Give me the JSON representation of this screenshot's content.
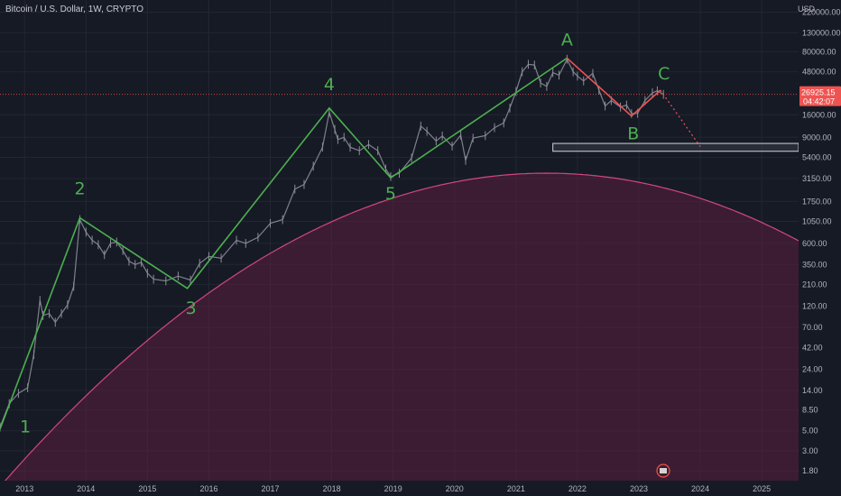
{
  "header": {
    "title": "Bitcoin / U.S. Dollar, 1W, CRYPTO",
    "currency": "USD"
  },
  "price_badge": {
    "price": "26925.15",
    "countdown": "04:42:07"
  },
  "colors": {
    "background": "#161a25",
    "candles": "#8a8d97",
    "impulse_lines": "#4caf50",
    "correction_line": "#ef5350",
    "curve_fill": "#6b1f45",
    "curve_stroke": "#d2477f",
    "price_line": "#ef5350",
    "badge": "#ef5350"
  },
  "chart_data": {
    "type": "line",
    "title": "Bitcoin / U.S. Dollar, 1W, CRYPTO",
    "ylabel": "USD",
    "y_scale": "log",
    "ylim": [
      1.4,
      300000
    ],
    "xlim": [
      2012.6,
      2025.6
    ],
    "x_ticks": [
      "2013",
      "2014",
      "2015",
      "2016",
      "2017",
      "2018",
      "2019",
      "2020",
      "2021",
      "2022",
      "2023",
      "2024",
      "2025"
    ],
    "y_ticks": [
      "220000.00",
      "130000.00",
      "80000.00",
      "48000.00",
      "26925.15",
      "16000.00",
      "9000.00",
      "5400.00",
      "3150.00",
      "1750.00",
      "1050.00",
      "600.00",
      "350.00",
      "210.00",
      "120.00",
      "70.00",
      "42.00",
      "24.00",
      "14.00",
      "8.50",
      "5.00",
      "3.00",
      "1.80"
    ],
    "series": [
      {
        "values": [
          [
            2012.6,
            5.5
          ],
          [
            2012.75,
            10
          ],
          [
            2012.9,
            13
          ],
          [
            2013.05,
            15
          ],
          [
            2013.15,
            35
          ],
          [
            2013.25,
            140
          ],
          [
            2013.3,
            95
          ],
          [
            2013.4,
            100
          ],
          [
            2013.5,
            80
          ],
          [
            2013.6,
            100
          ],
          [
            2013.7,
            125
          ],
          [
            2013.8,
            200
          ],
          [
            2013.9,
            1100
          ],
          [
            2014.0,
            800
          ],
          [
            2014.1,
            650
          ],
          [
            2014.2,
            580
          ],
          [
            2014.3,
            450
          ],
          [
            2014.4,
            600
          ],
          [
            2014.5,
            620
          ],
          [
            2014.6,
            500
          ],
          [
            2014.7,
            380
          ],
          [
            2014.8,
            350
          ],
          [
            2014.9,
            370
          ],
          [
            2015.0,
            280
          ],
          [
            2015.1,
            240
          ],
          [
            2015.3,
            230
          ],
          [
            2015.5,
            260
          ],
          [
            2015.7,
            235
          ],
          [
            2015.85,
            360
          ],
          [
            2016.0,
            430
          ],
          [
            2016.2,
            410
          ],
          [
            2016.45,
            650
          ],
          [
            2016.6,
            600
          ],
          [
            2016.8,
            700
          ],
          [
            2017.0,
            1000
          ],
          [
            2017.2,
            1100
          ],
          [
            2017.4,
            2400
          ],
          [
            2017.55,
            2700
          ],
          [
            2017.7,
            4300
          ],
          [
            2017.85,
            7000
          ],
          [
            2017.96,
            17000
          ],
          [
            2018.05,
            11000
          ],
          [
            2018.1,
            8500
          ],
          [
            2018.2,
            9000
          ],
          [
            2018.3,
            7000
          ],
          [
            2018.45,
            6400
          ],
          [
            2018.6,
            7500
          ],
          [
            2018.75,
            6400
          ],
          [
            2018.88,
            4000
          ],
          [
            2018.96,
            3300
          ],
          [
            2019.1,
            3600
          ],
          [
            2019.3,
            5300
          ],
          [
            2019.45,
            12000
          ],
          [
            2019.55,
            10500
          ],
          [
            2019.7,
            8200
          ],
          [
            2019.8,
            9300
          ],
          [
            2019.96,
            7200
          ],
          [
            2020.1,
            9500
          ],
          [
            2020.18,
            5000
          ],
          [
            2020.3,
            8800
          ],
          [
            2020.5,
            9400
          ],
          [
            2020.65,
            11500
          ],
          [
            2020.8,
            13000
          ],
          [
            2020.9,
            19000
          ],
          [
            2021.0,
            29000
          ],
          [
            2021.1,
            48000
          ],
          [
            2021.2,
            58000
          ],
          [
            2021.3,
            57000
          ],
          [
            2021.4,
            36000
          ],
          [
            2021.5,
            33000
          ],
          [
            2021.6,
            47000
          ],
          [
            2021.7,
            44000
          ],
          [
            2021.83,
            66000
          ],
          [
            2021.93,
            48000
          ],
          [
            2022.0,
            43000
          ],
          [
            2022.1,
            38000
          ],
          [
            2022.25,
            46000
          ],
          [
            2022.35,
            30000
          ],
          [
            2022.45,
            20000
          ],
          [
            2022.55,
            23000
          ],
          [
            2022.7,
            19500
          ],
          [
            2022.8,
            20500
          ],
          [
            2022.88,
            16500
          ],
          [
            2022.98,
            16600
          ],
          [
            2023.1,
            23000
          ],
          [
            2023.22,
            28000
          ],
          [
            2023.3,
            29500
          ],
          [
            2023.4,
            26900
          ]
        ]
      }
    ],
    "annotations": {
      "wave_labels": [
        {
          "text": "1",
          "x": 2012.6,
          "y": 5.5
        },
        {
          "text": "2",
          "x": 2013.9,
          "y": 1150
        },
        {
          "text": "3",
          "x": 2015.65,
          "y": 190
        },
        {
          "text": "4",
          "x": 2017.96,
          "y": 19000
        },
        {
          "text": "5",
          "x": 2018.96,
          "y": 3200
        },
        {
          "text": "A",
          "x": 2021.83,
          "y": 68000
        },
        {
          "text": "B",
          "x": 2022.88,
          "y": 15500
        },
        {
          "text": "C",
          "x": 2023.35,
          "y": 30000
        }
      ],
      "impulse_path": [
        [
          2012.6,
          5.2
        ],
        [
          2013.9,
          1150
        ],
        [
          2015.65,
          190
        ],
        [
          2017.96,
          19000
        ],
        [
          2018.96,
          3200
        ],
        [
          2021.83,
          68000
        ]
      ],
      "correction_path": [
        [
          2021.83,
          68000
        ],
        [
          2022.88,
          15500
        ],
        [
          2023.35,
          30000
        ]
      ],
      "projection_path": [
        [
          2023.35,
          30000
        ],
        [
          2024.0,
          7100
        ]
      ],
      "horizontal_zone": {
        "x_start": 2021.6,
        "x_end": 2025.6,
        "y_top": 7700,
        "y_bottom": 6300
      },
      "price_line": 26925.15,
      "curve": {
        "x_start": 2012.6,
        "x_end": 2025.6,
        "start_value": 1.2,
        "peak_value": 3600,
        "peak_x": 2021.5,
        "end_value": 640
      }
    }
  }
}
